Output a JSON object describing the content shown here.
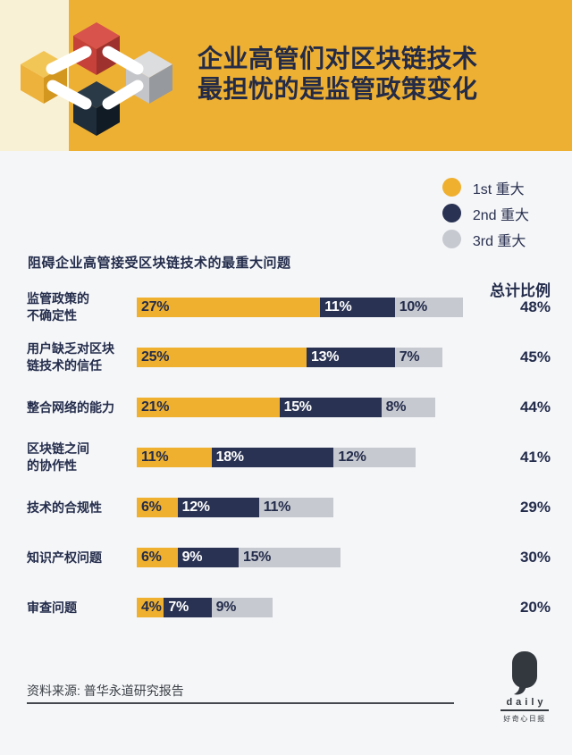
{
  "header": {
    "title_line1": "企业高管们对区块链技术",
    "title_line2": "最担忧的是监管政策变化",
    "banner_color": "#EEB033",
    "strip_color": "#F9F1D6",
    "title_color": "#242B47"
  },
  "logo": {
    "name": "blockchain-linked-cubes",
    "cube_colors": [
      "#EDB23C",
      "#C5413A",
      "#C3C5C9",
      "#1F2D3A"
    ],
    "link_color": "#FFFFFF"
  },
  "legend": {
    "items": [
      {
        "label": "1st 重大",
        "color": "#EFB02F"
      },
      {
        "label": "2nd 重大",
        "color": "#293253"
      },
      {
        "label": "3rd 重大",
        "color": "#C7C9D0"
      }
    ]
  },
  "chart_data": {
    "type": "bar",
    "stacked": true,
    "orientation": "horizontal",
    "title": "阻碍企业高管接受区块链技术的最重大问题",
    "categories": [
      "监管政策的\n不确定性",
      "用户缺乏对区块\n链技术的信任",
      "整合网络的能力",
      "区块链之间\n的协作性",
      "技术的合规性",
      "知识产权问题",
      "审查问题"
    ],
    "series": [
      {
        "name": "1st 重大",
        "color": "#EFB02F",
        "text_color": "#232C4B",
        "values": [
          27,
          25,
          21,
          11,
          6,
          6,
          4
        ]
      },
      {
        "name": "2nd 重大",
        "color": "#293253",
        "text_color": "#FFFFFF",
        "values": [
          11,
          13,
          15,
          18,
          12,
          9,
          7
        ]
      },
      {
        "name": "3rd 重大",
        "color": "#C7C9D0",
        "text_color": "#232C4B",
        "values": [
          10,
          7,
          8,
          12,
          11,
          15,
          9
        ]
      }
    ],
    "totals_label": "总计比例",
    "totals": [
      "48%",
      "45%",
      "44%",
      "41%",
      "29%",
      "30%",
      "20%"
    ],
    "unit": "%",
    "xlim": [
      0,
      48
    ],
    "grid": false,
    "legend_position": "top-right"
  },
  "footer": {
    "source": "资料来源: 普华永道研究报告",
    "brand": {
      "daily": "daily",
      "tagline": "好奇心日报"
    }
  }
}
